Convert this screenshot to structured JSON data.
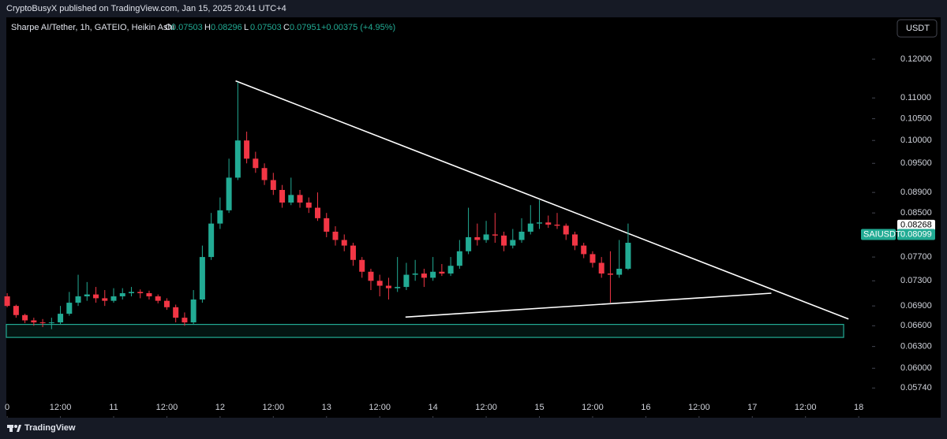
{
  "header": "CryptoBusyX published on TradingView.com, Jan 15, 2025 20:41 UTC+4",
  "footer": "TradingView",
  "chart_data": {
    "type": "candlestick",
    "title": "Sharpe AI/Tether, 1h, GATEIO, Heikin Ashi",
    "ohlc": [
      {
        "label": "O",
        "value": 0.07503
      },
      {
        "label": "H",
        "value": 0.08296
      },
      {
        "label": "L",
        "value": 0.07503
      },
      {
        "label": "C",
        "value": 0.07951
      }
    ],
    "change": "+0.00375 (+4.95%)",
    "currency": "USDT",
    "up_color": "#22ab94",
    "down_color": "#f23645",
    "log_scale": true,
    "grid": false,
    "ylim": [
      0.0537,
      0.1318
    ],
    "yticks": [
      {
        "value": 0.12,
        "label": "0.12000"
      },
      {
        "value": 0.11,
        "label": "0.11000"
      },
      {
        "value": 0.105,
        "label": "0.10500"
      },
      {
        "value": 0.1,
        "label": "0.10000"
      },
      {
        "value": 0.095,
        "label": "0.09500"
      },
      {
        "value": 0.089,
        "label": "0.08900"
      },
      {
        "value": 0.085,
        "label": "0.08500"
      },
      {
        "value": 0.077,
        "label": "0.07700"
      },
      {
        "value": 0.073,
        "label": "0.07300"
      },
      {
        "value": 0.069,
        "label": "0.06900"
      },
      {
        "value": 0.066,
        "label": "0.06600"
      },
      {
        "value": 0.063,
        "label": "0.06300"
      },
      {
        "value": 0.06,
        "label": "0.06000"
      },
      {
        "value": 0.0574,
        "label": "0.05740"
      }
    ],
    "xlim": [
      -0.2,
      195
    ],
    "xticks": [
      {
        "value": 0,
        "label": "0"
      },
      {
        "value": 12,
        "label": "12:00"
      },
      {
        "value": 24,
        "label": "11"
      },
      {
        "value": 36,
        "label": "12:00"
      },
      {
        "value": 48,
        "label": "12"
      },
      {
        "value": 60,
        "label": "12:00"
      },
      {
        "value": 72,
        "label": "13"
      },
      {
        "value": 84,
        "label": "12:00"
      },
      {
        "value": 96,
        "label": "14"
      },
      {
        "value": 108,
        "label": "12:00"
      },
      {
        "value": 120,
        "label": "15"
      },
      {
        "value": 132,
        "label": "12:00"
      },
      {
        "value": 144,
        "label": "16"
      },
      {
        "value": 156,
        "label": "12:00"
      },
      {
        "value": 168,
        "label": "17"
      },
      {
        "value": 180,
        "label": "12:00"
      },
      {
        "value": 192,
        "label": "18"
      }
    ],
    "x": [
      0,
      2,
      4,
      6,
      8,
      10,
      12,
      14,
      16,
      18,
      20,
      22,
      24,
      26,
      28,
      30,
      32,
      34,
      36,
      38,
      40,
      42,
      44,
      46,
      48,
      50,
      52,
      54,
      56,
      58,
      60,
      62,
      64,
      66,
      68,
      70,
      72,
      74,
      76,
      78,
      80,
      82,
      84,
      86,
      88,
      90,
      92,
      94,
      96,
      98,
      100,
      102,
      104,
      106,
      108,
      110,
      112,
      114,
      116,
      118,
      120,
      122,
      124,
      126,
      128,
      130,
      132,
      134,
      136,
      138,
      140
    ],
    "open": [
      0.0705,
      0.069,
      0.0676,
      0.0668,
      0.0665,
      0.0664,
      0.0665,
      0.0678,
      0.0695,
      0.0705,
      0.0708,
      0.0702,
      0.0698,
      0.0705,
      0.071,
      0.0712,
      0.071,
      0.0705,
      0.0698,
      0.0688,
      0.0672,
      0.0665,
      0.07,
      0.077,
      0.083,
      0.0855,
      0.092,
      0.1,
      0.096,
      0.094,
      0.0915,
      0.0895,
      0.087,
      0.0885,
      0.087,
      0.086,
      0.084,
      0.0815,
      0.08,
      0.079,
      0.0765,
      0.0745,
      0.073,
      0.0722,
      0.0718,
      0.072,
      0.074,
      0.0742,
      0.0735,
      0.0745,
      0.0742,
      0.0755,
      0.078,
      0.0805,
      0.08,
      0.081,
      0.0808,
      0.079,
      0.08,
      0.0815,
      0.083,
      0.0832,
      0.0828,
      0.0826,
      0.081,
      0.079,
      0.0775,
      0.076,
      0.0742,
      0.074,
      0.075
    ],
    "high": [
      0.071,
      0.0692,
      0.0678,
      0.0672,
      0.067,
      0.0672,
      0.069,
      0.0712,
      0.074,
      0.0728,
      0.072,
      0.0715,
      0.0718,
      0.0718,
      0.072,
      0.0716,
      0.0714,
      0.0708,
      0.0702,
      0.0692,
      0.068,
      0.0715,
      0.079,
      0.085,
      0.088,
      0.096,
      0.114,
      0.102,
      0.0975,
      0.095,
      0.093,
      0.0905,
      0.092,
      0.0895,
      0.088,
      0.089,
      0.085,
      0.0825,
      0.081,
      0.0795,
      0.077,
      0.075,
      0.074,
      0.0735,
      0.077,
      0.076,
      0.0765,
      0.075,
      0.077,
      0.0758,
      0.077,
      0.08,
      0.086,
      0.083,
      0.0835,
      0.085,
      0.0815,
      0.082,
      0.084,
      0.0865,
      0.0875,
      0.0845,
      0.085,
      0.083,
      0.0815,
      0.0795,
      0.078,
      0.077,
      0.078,
      0.08,
      0.083
    ],
    "low": [
      0.0688,
      0.0672,
      0.0664,
      0.066,
      0.0658,
      0.0655,
      0.0662,
      0.0675,
      0.069,
      0.0698,
      0.0695,
      0.069,
      0.0695,
      0.07,
      0.0705,
      0.0702,
      0.07,
      0.0694,
      0.0684,
      0.0665,
      0.066,
      0.0662,
      0.0695,
      0.0765,
      0.082,
      0.085,
      0.0915,
      0.095,
      0.093,
      0.0905,
      0.0885,
      0.086,
      0.0865,
      0.086,
      0.085,
      0.0835,
      0.0805,
      0.079,
      0.078,
      0.0755,
      0.0735,
      0.0715,
      0.0705,
      0.07,
      0.0712,
      0.0715,
      0.073,
      0.072,
      0.073,
      0.0738,
      0.0738,
      0.075,
      0.0775,
      0.079,
      0.0795,
      0.0795,
      0.078,
      0.0785,
      0.0795,
      0.081,
      0.082,
      0.0822,
      0.082,
      0.08,
      0.0782,
      0.0768,
      0.0752,
      0.0735,
      0.0695,
      0.0735,
      0.0748
    ],
    "close": [
      0.069,
      0.0676,
      0.0668,
      0.0665,
      0.0664,
      0.0665,
      0.0678,
      0.0695,
      0.0705,
      0.0708,
      0.0702,
      0.0698,
      0.0705,
      0.071,
      0.0712,
      0.071,
      0.0705,
      0.0698,
      0.0688,
      0.0672,
      0.0665,
      0.07,
      0.077,
      0.083,
      0.0855,
      0.092,
      0.1,
      0.096,
      0.094,
      0.0915,
      0.0895,
      0.087,
      0.0885,
      0.087,
      0.086,
      0.084,
      0.0815,
      0.08,
      0.079,
      0.0765,
      0.0745,
      0.073,
      0.0722,
      0.0718,
      0.072,
      0.074,
      0.0742,
      0.0735,
      0.0745,
      0.0742,
      0.0755,
      0.078,
      0.0805,
      0.08,
      0.081,
      0.0808,
      0.079,
      0.08,
      0.0815,
      0.083,
      0.0832,
      0.0828,
      0.0826,
      0.081,
      0.079,
      0.0775,
      0.076,
      0.0742,
      0.074,
      0.075,
      0.0795
    ],
    "price_tags": [
      {
        "value": 0.08268
      },
      {
        "name": "SAIUSDT",
        "value": 0.08099
      }
    ],
    "drawings": [
      {
        "type": "trendline",
        "x": [
          51.5,
          189.7
        ],
        "y": [
          0.1143,
          0.067
        ]
      },
      {
        "type": "trendline",
        "x": [
          89.8,
          172.3
        ],
        "y": [
          0.0673,
          0.071
        ]
      },
      {
        "type": "zone",
        "x": [
          -0.2,
          188.6
        ],
        "y": [
          0.0643,
          0.0662
        ]
      }
    ]
  }
}
